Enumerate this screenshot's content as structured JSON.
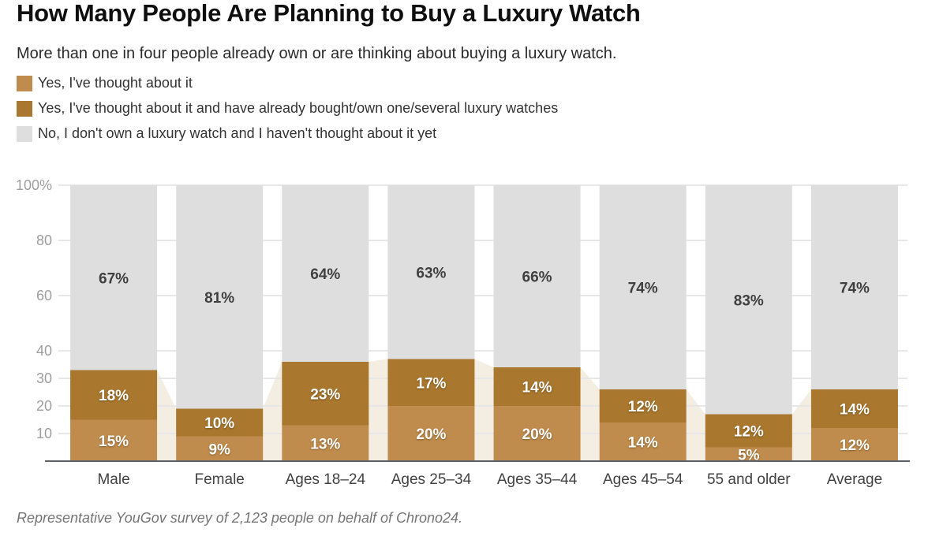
{
  "page": {
    "title": "How Many People Are Planning to Buy a Luxury Watch",
    "subtitle": "More than one in four people already own or are thinking about buying a luxury watch.",
    "footnote": "Representative YouGov survey of 2,123 people on behalf of Chrono24."
  },
  "legend": [
    {
      "label": "Yes, I've thought about it",
      "color": "#c08c4d"
    },
    {
      "label": "Yes, I've thought about it and have already bought/own one/several luxury watches",
      "color": "#a9772e"
    },
    {
      "label": "No, I don't own a luxury watch and I haven't thought about it yet",
      "color": "#dedede"
    }
  ],
  "chart_data": {
    "type": "bar",
    "stacked": true,
    "title": "How Many People Are Planning to Buy a Luxury Watch",
    "categories": [
      "Male",
      "Female",
      "Ages 18–24",
      "Ages 25–34",
      "Ages 35–44",
      "Ages 45–54",
      "55 and older",
      "Average"
    ],
    "series": [
      {
        "name": "Yes, I've thought about it",
        "color": "#c08c4d",
        "label_color": "#ffffff",
        "values": [
          15,
          9,
          13,
          20,
          20,
          14,
          5,
          12
        ]
      },
      {
        "name": "Yes, I've thought about it and have already bought/own one/several luxury watches",
        "color": "#a9772e",
        "label_color": "#ffffff",
        "values": [
          18,
          10,
          23,
          17,
          14,
          12,
          12,
          14
        ]
      },
      {
        "name": "No, I don't own a luxury watch and I haven't thought about it yet",
        "color": "#dedede",
        "label_color": "#3f3f3f",
        "values": [
          67,
          81,
          64,
          63,
          66,
          74,
          83,
          74
        ]
      }
    ],
    "label_suffix": "%",
    "y_ticks": [
      10,
      20,
      30,
      40,
      60,
      80,
      100
    ],
    "y_tick_labels": [
      "10",
      "20",
      "30",
      "40",
      "60",
      "80",
      "100%"
    ],
    "ylim": [
      0,
      100
    ],
    "grid": true,
    "legend_position": "top",
    "colors": {
      "trend_area": "#f4eee2",
      "gridline": "#e7e7e7",
      "axis_line": "#5f6368",
      "tick_label": "#9e9e9e",
      "category_label": "#424242"
    }
  }
}
